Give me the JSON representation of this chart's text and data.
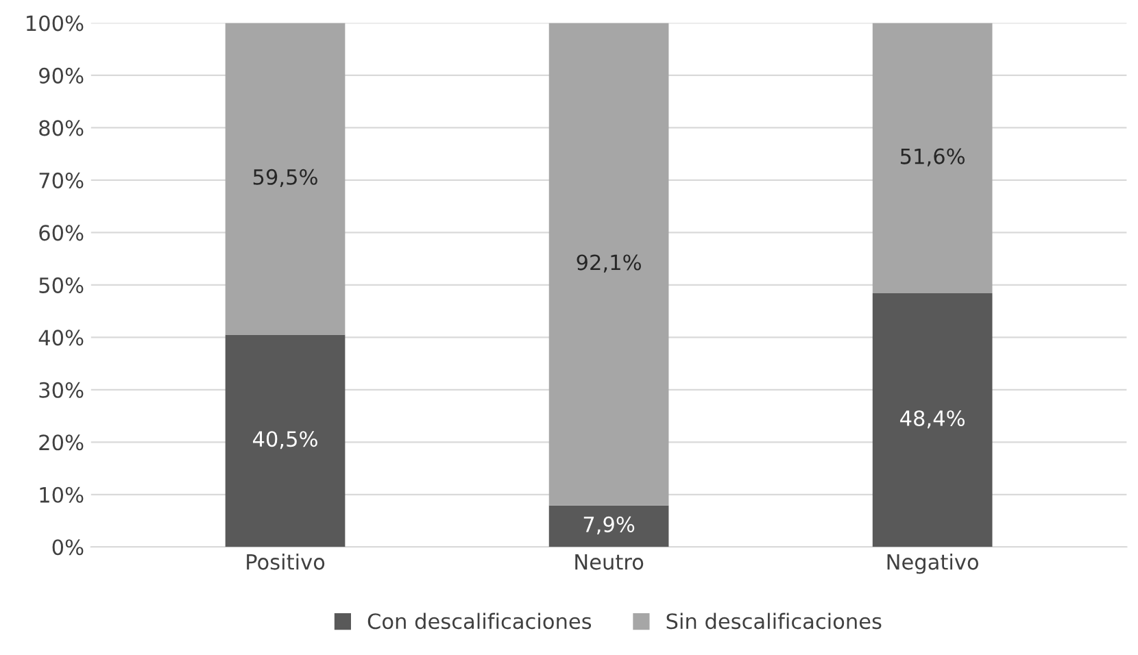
{
  "chart_data": {
    "type": "bar",
    "stacked": true,
    "categories": [
      "Positivo",
      "Neutro",
      "Negativo"
    ],
    "series": [
      {
        "name": "Con descalificaciones",
        "color": "#595959",
        "values": [
          40.5,
          7.9,
          48.4
        ],
        "value_labels": [
          "40,5%",
          "7,9%",
          "48,4%"
        ]
      },
      {
        "name": "Sin descalificaciones",
        "color": "#a6a6a6",
        "values": [
          59.5,
          92.1,
          51.6
        ],
        "value_labels": [
          "59,5%",
          "92,1%",
          "51,6%"
        ]
      }
    ],
    "ylim": [
      0,
      100
    ],
    "yticks": [
      {
        "value": 0,
        "label": "0%"
      },
      {
        "value": 10,
        "label": "10%"
      },
      {
        "value": 20,
        "label": "20%"
      },
      {
        "value": 30,
        "label": "30%"
      },
      {
        "value": 40,
        "label": "40%"
      },
      {
        "value": 50,
        "label": "50%"
      },
      {
        "value": 60,
        "label": "60%"
      },
      {
        "value": 70,
        "label": "70%"
      },
      {
        "value": 80,
        "label": "80%"
      },
      {
        "value": 90,
        "label": "90%"
      },
      {
        "value": 100,
        "label": "100%"
      }
    ],
    "grid": "y",
    "legend": "bottom"
  }
}
